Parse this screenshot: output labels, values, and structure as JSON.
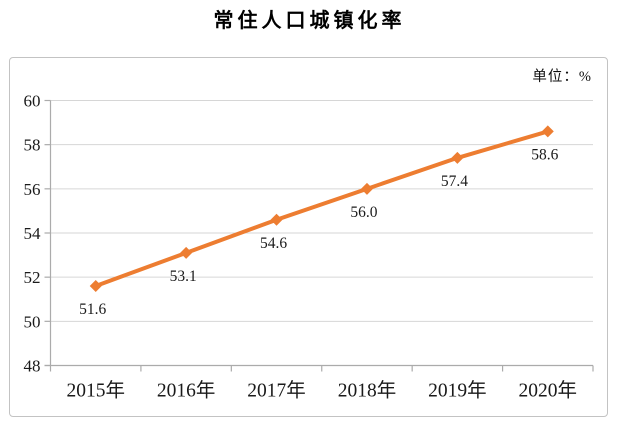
{
  "title": "常住人口城镇化率",
  "unit_label": "单位：%",
  "chart_data": {
    "type": "line",
    "title": "常住人口城镇化率",
    "unit": "%",
    "categories": [
      "2015年",
      "2016年",
      "2017年",
      "2018年",
      "2019年",
      "2020年"
    ],
    "series": [
      {
        "name": "常住人口城镇化率",
        "values": [
          51.6,
          53.1,
          54.6,
          56.0,
          57.4,
          58.6
        ]
      }
    ],
    "data_labels": [
      "51.6",
      "53.1",
      "54.6",
      "56.0",
      "57.4",
      "58.6"
    ],
    "ylim": [
      48,
      60
    ],
    "y_ticks": [
      48,
      50,
      52,
      54,
      56,
      58,
      60
    ],
    "grid": true,
    "legend_position": "none",
    "line_color": "#ED7D31",
    "marker": "diamond",
    "grid_color": "#D6D6D6",
    "axis_color": "#ABABAB",
    "text_color": "#1A1A1A"
  }
}
